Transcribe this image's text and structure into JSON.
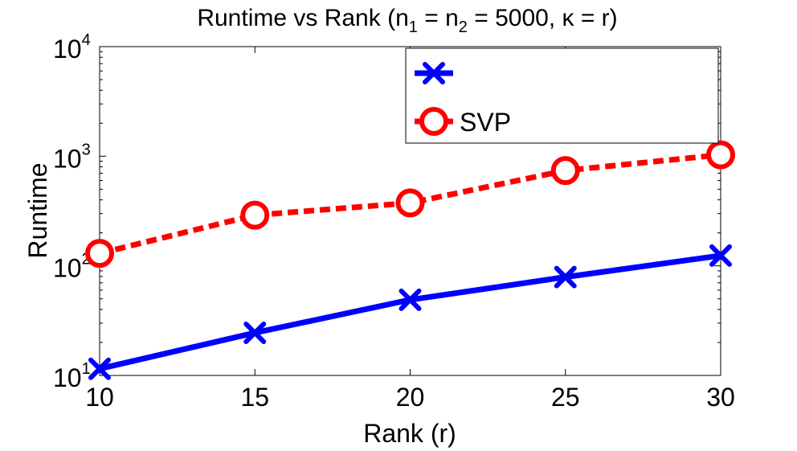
{
  "chart_data": {
    "type": "line",
    "title": "Runtime vs Rank (n_1 = n_2 = 5000, κ = r)",
    "title_parts": {
      "prefix": "Runtime vs Rank (n",
      "sub1": "1",
      "mid": " = n",
      "sub2": "2",
      "suffix": " = 5000, κ = r)"
    },
    "xlabel": "Rank (r)",
    "ylabel": "Runtime",
    "xlim": [
      10,
      30
    ],
    "ylim": [
      10,
      10000
    ],
    "yscale": "log",
    "xticks": [
      "10",
      "15",
      "20",
      "25",
      "30"
    ],
    "yticks": [
      {
        "base": "10",
        "exp": "1",
        "value": 10
      },
      {
        "base": "10",
        "exp": "2",
        "value": 100
      },
      {
        "base": "10",
        "exp": "3",
        "value": 1000
      },
      {
        "base": "10",
        "exp": "4",
        "value": 10000
      }
    ],
    "x": [
      10,
      15,
      20,
      25,
      30
    ],
    "series": [
      {
        "name": "",
        "color": "#0000ff",
        "marker": "x",
        "line": "solid",
        "values": [
          11.5,
          24.5,
          49,
          79,
          124
        ]
      },
      {
        "name": "SVP",
        "color": "#ff0000",
        "marker": "o",
        "line": "dashed",
        "values": [
          130,
          290,
          375,
          740,
          1030
        ]
      }
    ],
    "legend_position": "top-right"
  }
}
